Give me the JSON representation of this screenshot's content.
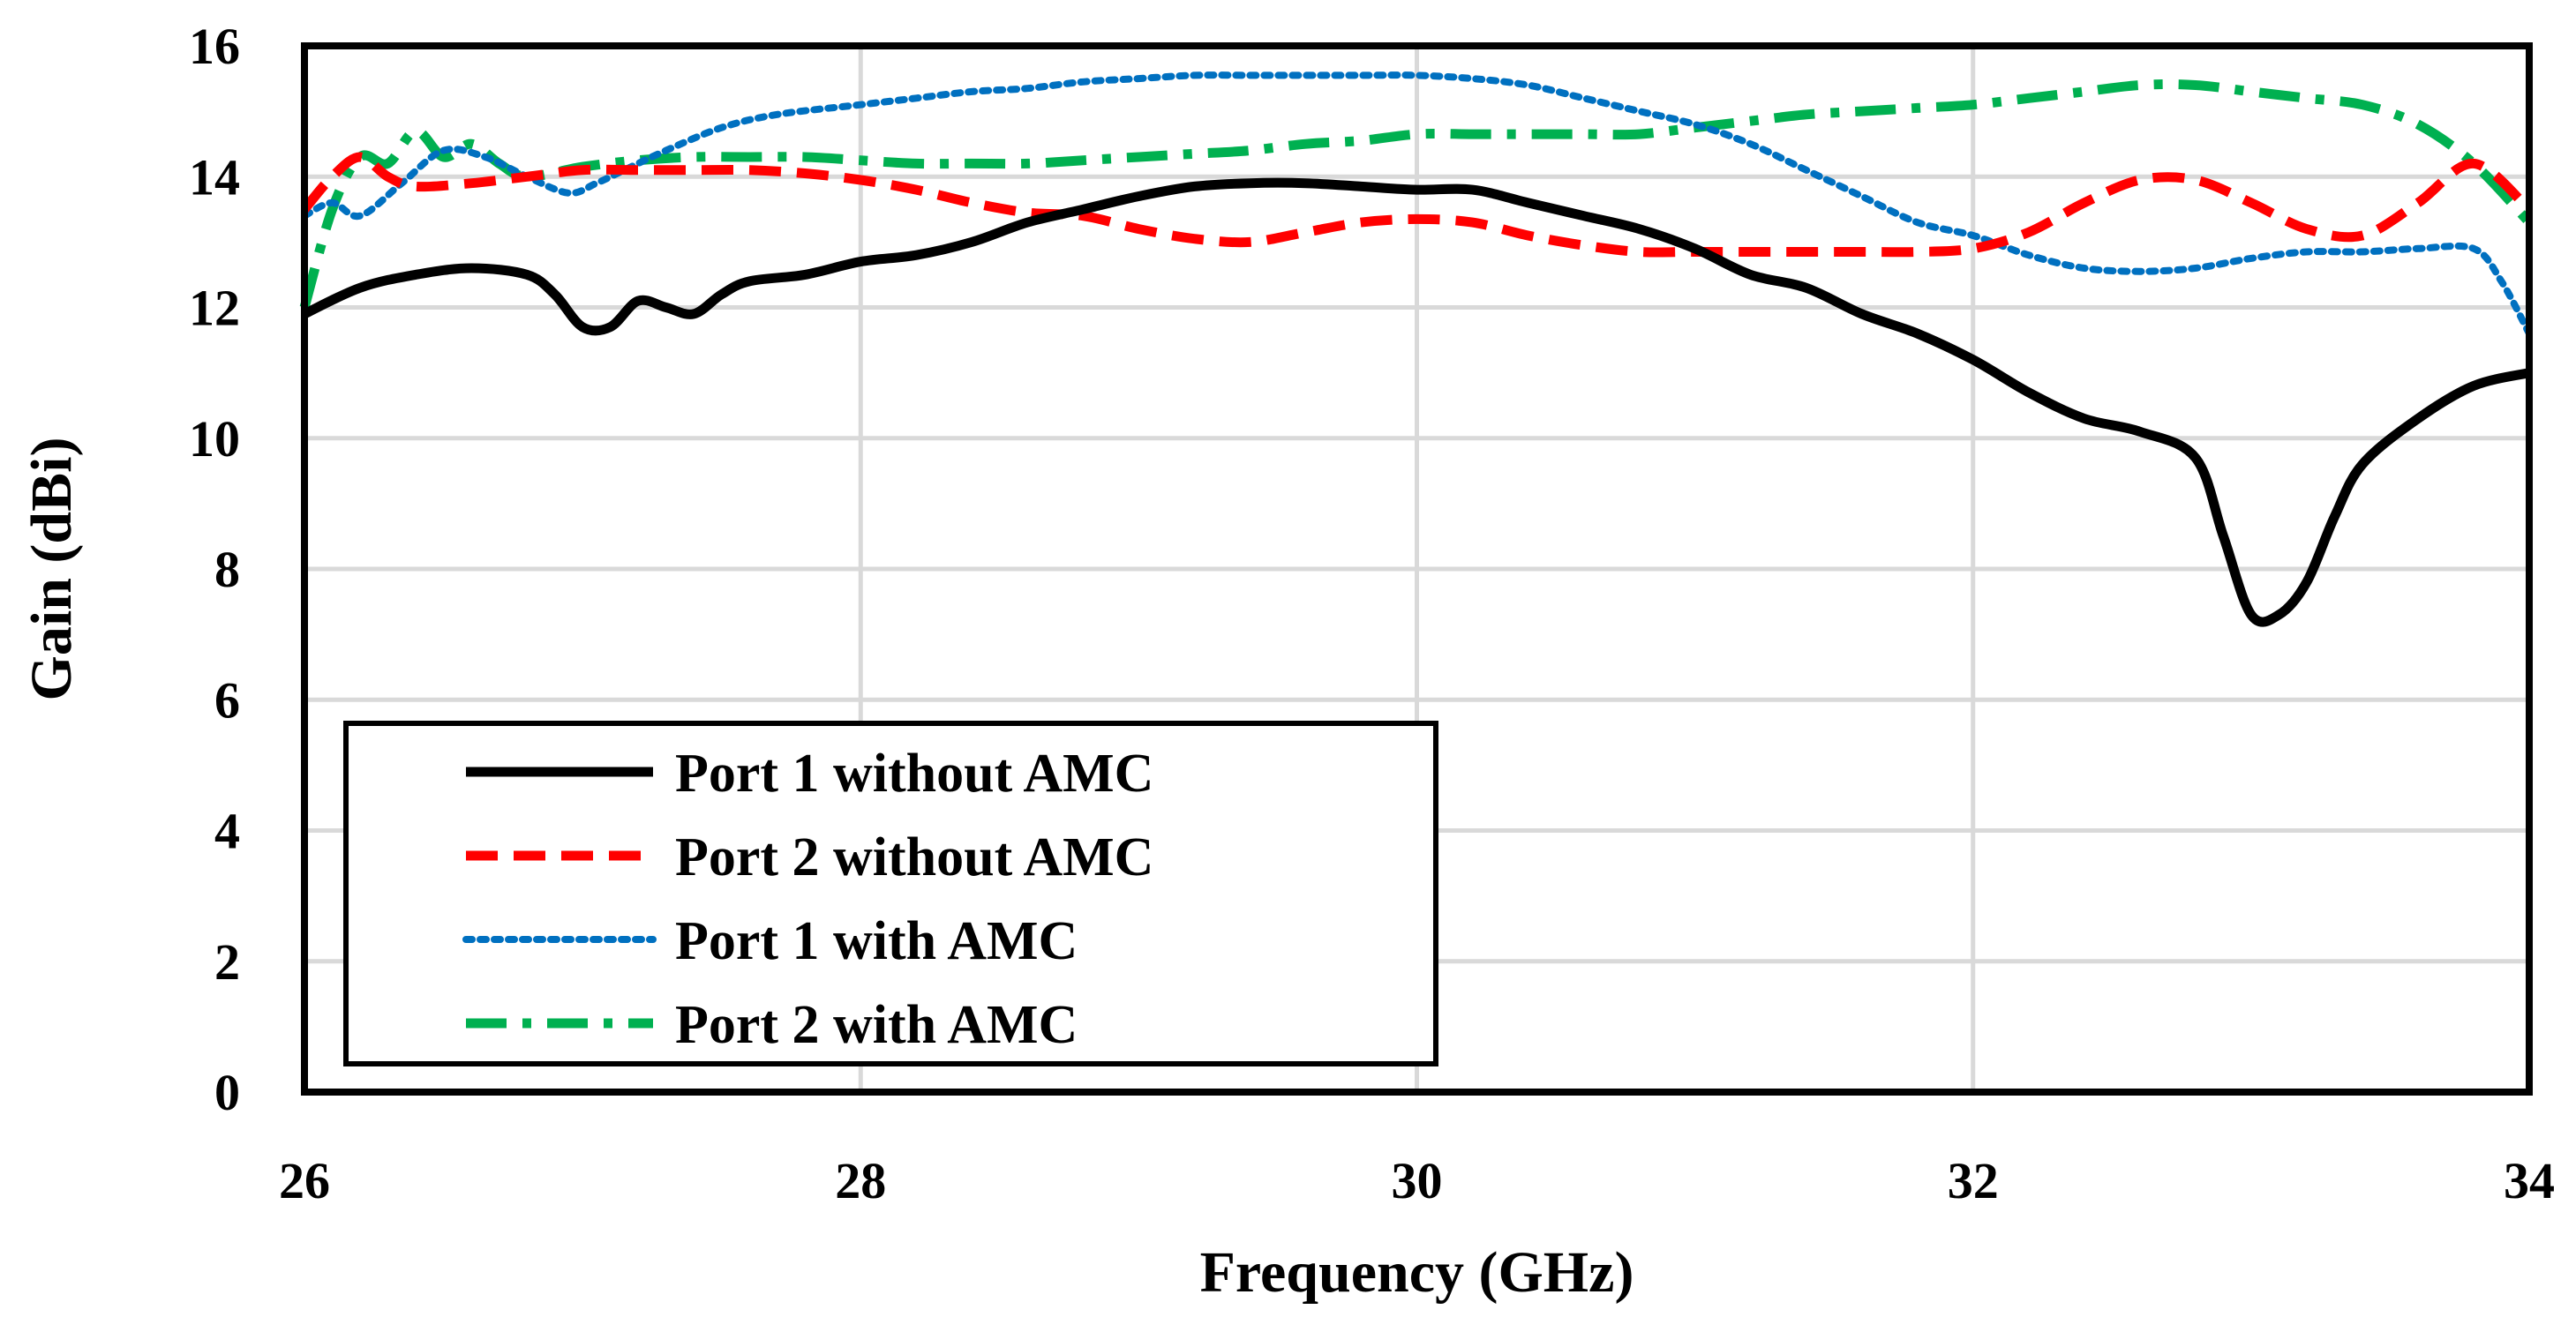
{
  "chart_data": {
    "type": "line",
    "title": "",
    "xlabel": "Frequency (GHz)",
    "ylabel": "Gain (dBi)",
    "xlim": [
      26,
      34
    ],
    "ylim": [
      0,
      16
    ],
    "x_ticks": [
      26,
      28,
      30,
      32,
      34
    ],
    "y_ticks": [
      0,
      2,
      4,
      6,
      8,
      10,
      12,
      14,
      16
    ],
    "x_tick_labels": [
      "26",
      "28",
      "30",
      "32",
      "34"
    ],
    "y_tick_labels": [
      "0",
      "2",
      "4",
      "6",
      "8",
      "10",
      "12",
      "14",
      "16"
    ],
    "grid": true,
    "legend_position": "bottom-left",
    "series": [
      {
        "name": "Port 1 without AMC",
        "color": "#000000",
        "style": "solid",
        "x": [
          26.0,
          26.2,
          26.4,
          26.6,
          26.8,
          26.9,
          27.0,
          27.1,
          27.2,
          27.3,
          27.4,
          27.5,
          27.6,
          27.8,
          28.0,
          28.2,
          28.4,
          28.6,
          28.8,
          29.0,
          29.2,
          29.4,
          29.6,
          29.8,
          30.0,
          30.2,
          30.4,
          30.6,
          30.8,
          31.0,
          31.2,
          31.4,
          31.6,
          31.8,
          32.0,
          32.2,
          32.4,
          32.6,
          32.8,
          32.9,
          33.0,
          33.1,
          33.2,
          33.3,
          33.4,
          33.6,
          33.8,
          34.0
        ],
        "y": [
          11.9,
          12.3,
          12.5,
          12.6,
          12.5,
          12.2,
          11.7,
          11.7,
          12.1,
          12.0,
          11.9,
          12.2,
          12.4,
          12.5,
          12.7,
          12.8,
          13.0,
          13.3,
          13.5,
          13.7,
          13.85,
          13.9,
          13.9,
          13.85,
          13.8,
          13.8,
          13.6,
          13.4,
          13.2,
          12.9,
          12.5,
          12.3,
          11.9,
          11.6,
          11.2,
          10.7,
          10.3,
          10.1,
          9.7,
          8.5,
          7.3,
          7.3,
          7.8,
          8.8,
          9.6,
          10.3,
          10.8,
          11.0
        ]
      },
      {
        "name": "Port 2 without AMC",
        "color": "#ff0000",
        "style": "dashed",
        "x": [
          26.0,
          26.1,
          26.2,
          26.3,
          26.4,
          26.6,
          26.8,
          27.0,
          27.2,
          27.4,
          27.6,
          27.8,
          28.0,
          28.2,
          28.4,
          28.6,
          28.8,
          29.0,
          29.2,
          29.4,
          29.6,
          29.8,
          30.0,
          30.2,
          30.4,
          30.6,
          30.8,
          31.0,
          31.2,
          31.4,
          31.6,
          31.8,
          32.0,
          32.2,
          32.4,
          32.6,
          32.8,
          33.0,
          33.2,
          33.4,
          33.6,
          33.8,
          34.0
        ],
        "y": [
          13.5,
          14.0,
          14.3,
          14.0,
          13.85,
          13.9,
          14.0,
          14.1,
          14.1,
          14.1,
          14.1,
          14.05,
          13.95,
          13.8,
          13.6,
          13.45,
          13.4,
          13.2,
          13.05,
          13.0,
          13.15,
          13.3,
          13.35,
          13.3,
          13.1,
          12.95,
          12.85,
          12.85,
          12.85,
          12.85,
          12.85,
          12.85,
          12.9,
          13.15,
          13.6,
          13.95,
          13.95,
          13.6,
          13.2,
          13.1,
          13.6,
          14.2,
          13.5
        ]
      },
      {
        "name": "Port 1 with AMC",
        "color": "#0070c0",
        "style": "dotted",
        "x": [
          26.0,
          26.1,
          26.2,
          26.35,
          26.5,
          26.65,
          26.8,
          26.95,
          27.05,
          27.15,
          27.3,
          27.5,
          27.7,
          28.0,
          28.2,
          28.4,
          28.6,
          28.8,
          29.0,
          29.2,
          29.4,
          29.6,
          29.8,
          30.0,
          30.2,
          30.4,
          30.6,
          30.8,
          31.0,
          31.2,
          31.4,
          31.6,
          31.8,
          32.0,
          32.2,
          32.4,
          32.6,
          32.8,
          33.0,
          33.2,
          33.4,
          33.6,
          33.8,
          33.9,
          34.0
        ],
        "y": [
          13.4,
          13.6,
          13.4,
          13.9,
          14.4,
          14.3,
          14.0,
          13.75,
          13.9,
          14.1,
          14.4,
          14.75,
          14.95,
          15.1,
          15.2,
          15.3,
          15.35,
          15.45,
          15.5,
          15.55,
          15.55,
          15.55,
          15.55,
          15.55,
          15.5,
          15.4,
          15.2,
          15.0,
          14.8,
          14.5,
          14.1,
          13.7,
          13.3,
          13.1,
          12.8,
          12.6,
          12.55,
          12.6,
          12.75,
          12.85,
          12.85,
          12.9,
          12.9,
          12.4,
          11.6
        ]
      },
      {
        "name": "Port 2 with AMC",
        "color": "#00b050",
        "style": "dashdot",
        "x": [
          26.0,
          26.1,
          26.2,
          26.3,
          26.4,
          26.5,
          26.6,
          26.7,
          26.8,
          27.0,
          27.2,
          27.4,
          27.6,
          27.8,
          28.0,
          28.2,
          28.4,
          28.6,
          28.8,
          29.0,
          29.2,
          29.4,
          29.6,
          29.8,
          30.0,
          30.2,
          30.4,
          30.6,
          30.8,
          31.0,
          31.2,
          31.4,
          31.6,
          31.8,
          32.0,
          32.2,
          32.4,
          32.6,
          32.8,
          33.0,
          33.2,
          33.4,
          33.6,
          33.8,
          34.0
        ],
        "y": [
          12.0,
          13.5,
          14.3,
          14.2,
          14.7,
          14.3,
          14.5,
          14.2,
          14.0,
          14.15,
          14.25,
          14.3,
          14.3,
          14.3,
          14.25,
          14.2,
          14.2,
          14.2,
          14.25,
          14.3,
          14.35,
          14.4,
          14.5,
          14.55,
          14.65,
          14.65,
          14.65,
          14.65,
          14.65,
          14.75,
          14.85,
          14.95,
          15.0,
          15.05,
          15.1,
          15.2,
          15.3,
          15.4,
          15.4,
          15.3,
          15.2,
          15.1,
          14.8,
          14.2,
          13.3
        ]
      }
    ]
  }
}
